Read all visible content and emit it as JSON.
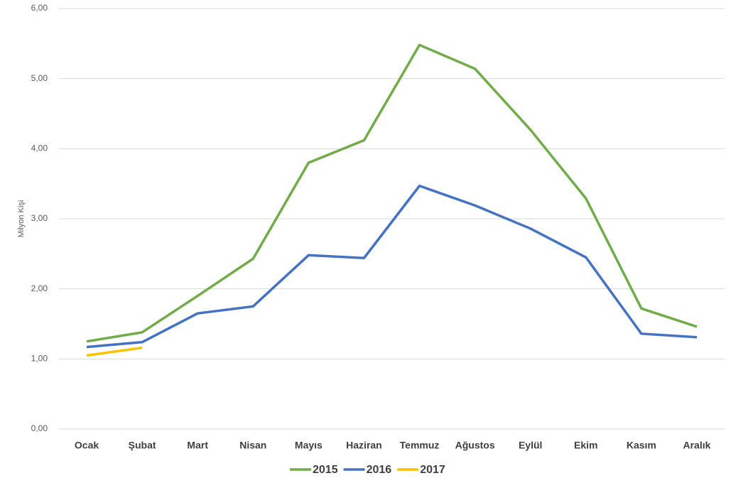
{
  "chart_data": {
    "type": "line",
    "y_label": "Milyon Kişi",
    "categories": [
      "Ocak",
      "Şubat",
      "Mart",
      "Nisan",
      "Mayıs",
      "Haziran",
      "Temmuz",
      "Ağustos",
      "Eylül",
      "Ekim",
      "Kasım",
      "Aralık"
    ],
    "series": [
      {
        "name": "2015",
        "color": "#70ad47",
        "values": [
          1.25,
          1.38,
          1.9,
          2.43,
          3.8,
          4.12,
          5.48,
          5.14,
          4.27,
          3.29,
          1.72,
          1.46
        ]
      },
      {
        "name": "2016",
        "color": "#4472c4",
        "values": [
          1.17,
          1.24,
          1.65,
          1.75,
          2.48,
          2.44,
          3.47,
          3.19,
          2.86,
          2.45,
          1.36,
          1.31
        ]
      },
      {
        "name": "2017",
        "color": "#ffc000",
        "values": [
          1.05,
          1.16,
          null,
          null,
          null,
          null,
          null,
          null,
          null,
          null,
          null,
          null
        ]
      }
    ],
    "ylim": [
      0,
      6
    ],
    "yticks": [
      {
        "value": 0,
        "label": "0,00"
      },
      {
        "value": 1,
        "label": "1,00"
      },
      {
        "value": 2,
        "label": "2,00"
      },
      {
        "value": 3,
        "label": "3,00"
      },
      {
        "value": 4,
        "label": "4,00"
      },
      {
        "value": 5,
        "label": "5,00"
      },
      {
        "value": 6,
        "label": "6,00"
      }
    ],
    "grid": true,
    "legend": "bottom"
  }
}
